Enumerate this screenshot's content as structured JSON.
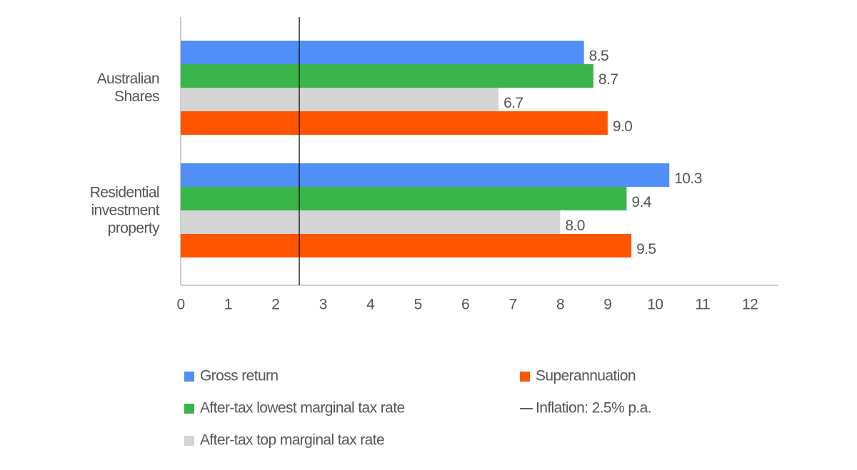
{
  "chart_data": {
    "type": "bar",
    "orientation": "horizontal",
    "categories": [
      "Australian Shares",
      "Residential investment property"
    ],
    "series": [
      {
        "name": "Gross return",
        "color": "#4f8ff7",
        "values": [
          8.5,
          10.3
        ],
        "value_labels": [
          "8.5",
          "10.3"
        ]
      },
      {
        "name": "After-tax lowest marginal tax rate",
        "color": "#3ab54a",
        "values": [
          8.7,
          9.4
        ],
        "value_labels": [
          "8.7",
          "9.4"
        ]
      },
      {
        "name": "After-tax top marginal tax rate",
        "color": "#d4d4d4",
        "values": [
          6.7,
          8.0
        ],
        "value_labels": [
          "6.7",
          "8.0"
        ]
      },
      {
        "name": "Superannuation",
        "color": "#ff5500",
        "values": [
          9.0,
          9.5
        ],
        "value_labels": [
          "9.0",
          "9.5"
        ]
      }
    ],
    "inflation": {
      "label": "Inflation: 2.5% p.a.",
      "value": 2.5,
      "color": "#000000"
    },
    "xlim": [
      0,
      12.6
    ],
    "xticks": [
      0,
      1,
      2,
      3,
      4,
      5,
      6,
      7,
      8,
      9,
      10,
      11,
      12
    ],
    "grid": false
  }
}
